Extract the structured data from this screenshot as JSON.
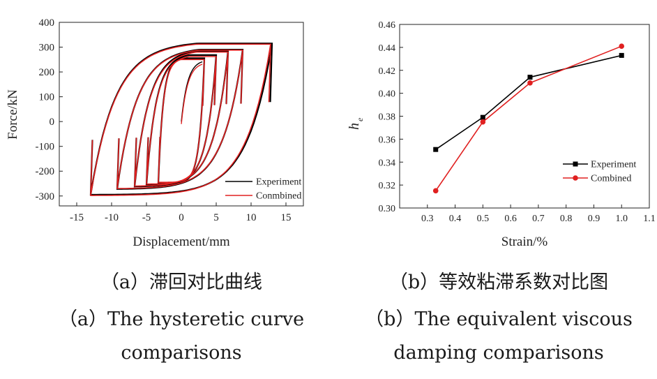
{
  "chart_data": [
    {
      "type": "line",
      "xlabel": "Displacement/mm",
      "ylabel": "Force/kN",
      "xlim": [
        -17.5,
        17.5
      ],
      "ylim": [
        -340,
        400
      ],
      "xticks": [
        -15,
        -10,
        -5,
        0,
        5,
        10,
        15
      ],
      "yticks": [
        -300,
        -200,
        -100,
        0,
        100,
        200,
        300,
        400
      ],
      "xtick_labels": [
        "-15",
        "-10",
        "-5",
        "0",
        "5",
        "10",
        "15"
      ],
      "ytick_labels": [
        "-300",
        "-200",
        "-100",
        "0",
        "100",
        "200",
        "300",
        "400"
      ],
      "legend_position": "bottom-right",
      "series": [
        {
          "name": "Experiment",
          "color": "#000000",
          "loops": [
            {
              "d_max": 3.3,
              "d_min": -3.3,
              "f_max": 255,
              "f_min": -248
            },
            {
              "d_max": 5.0,
              "d_min": -5.0,
              "f_max": 268,
              "f_min": -255
            },
            {
              "d_max": 6.7,
              "d_min": -6.7,
              "f_max": 285,
              "f_min": -262
            },
            {
              "d_max": 8.8,
              "d_min": -9.2,
              "f_max": 290,
              "f_min": -272
            },
            {
              "d_max": 13.0,
              "d_min": -13.0,
              "f_max": 315,
              "f_min": -295
            }
          ]
        },
        {
          "name": "Conmbined",
          "color": "#e02020",
          "loops": [
            {
              "d_max": 3.3,
              "d_min": -3.3,
              "f_max": 250,
              "f_min": -245
            },
            {
              "d_max": 5.0,
              "d_min": -5.0,
              "f_max": 262,
              "f_min": -252
            },
            {
              "d_max": 6.7,
              "d_min": -6.7,
              "f_max": 280,
              "f_min": -260
            },
            {
              "d_max": 8.8,
              "d_min": -9.2,
              "f_max": 288,
              "f_min": -270
            },
            {
              "d_max": 12.8,
              "d_min": -13.0,
              "f_max": 312,
              "f_min": -298
            }
          ]
        }
      ]
    },
    {
      "type": "line",
      "xlabel": "Strain/%",
      "ylabel": "h_e",
      "xlim": [
        0.2,
        1.1
      ],
      "ylim": [
        0.3,
        0.46
      ],
      "xticks": [
        0.3,
        0.4,
        0.5,
        0.6,
        0.7,
        0.8,
        0.9,
        1.0,
        1.1
      ],
      "yticks": [
        0.3,
        0.32,
        0.34,
        0.36,
        0.38,
        0.4,
        0.42,
        0.44,
        0.46
      ],
      "xtick_labels": [
        "0.3",
        "0.4",
        "0.5",
        "0.6",
        "0.7",
        "0.8",
        "0.9",
        "1.0",
        "1.1"
      ],
      "ytick_labels": [
        "0.30",
        "0.32",
        "0.34",
        "0.36",
        "0.38",
        "0.40",
        "0.42",
        "0.44",
        "0.46"
      ],
      "legend_position": "bottom-right",
      "x": [
        0.33,
        0.5,
        0.67,
        1.0
      ],
      "series": [
        {
          "name": "Experiment",
          "color": "#000000",
          "marker": "square",
          "values": [
            0.351,
            0.379,
            0.414,
            0.433
          ]
        },
        {
          "name": "Combined",
          "color": "#e02020",
          "marker": "circle",
          "values": [
            0.315,
            0.375,
            0.409,
            0.441
          ]
        }
      ]
    }
  ],
  "captions": {
    "a_cn": "（a）滞回对比曲线",
    "a_en1": "（a）The hysteretic curve",
    "a_en2": "comparisons",
    "b_cn": "（b）等效粘滞系数对比图",
    "b_en1": "（b）The equivalent viscous",
    "b_en2": "damping comparisons"
  },
  "ylabel_b_main": "h",
  "ylabel_b_sub": "e"
}
